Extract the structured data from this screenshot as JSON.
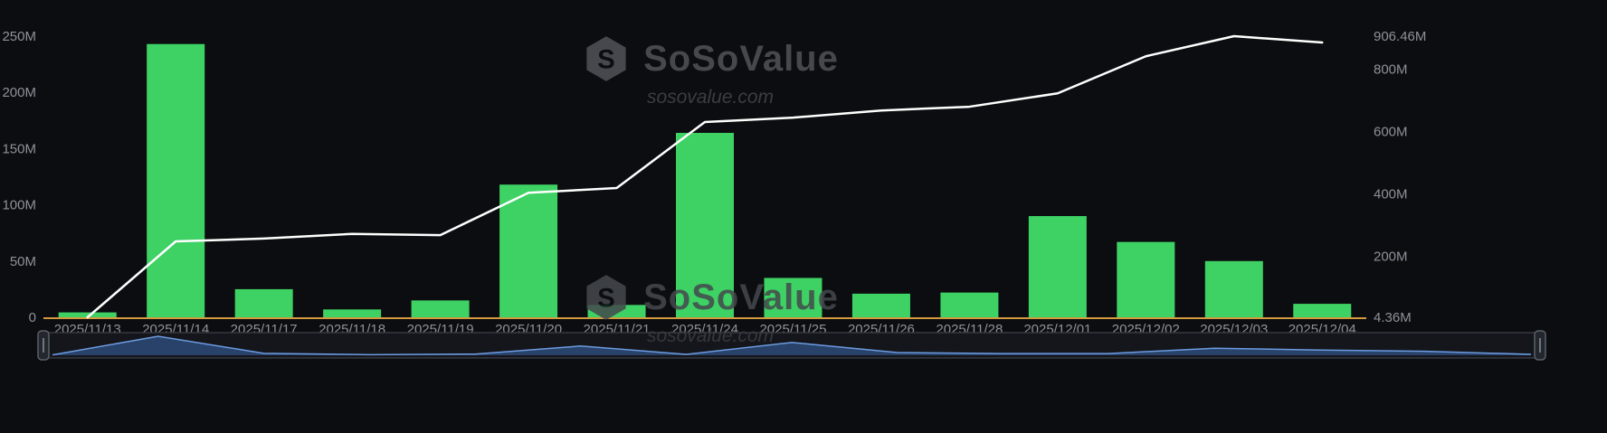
{
  "watermark": {
    "brand": "SoSoValue",
    "domain": "sosovalue.com"
  },
  "chart_data": {
    "type": "bar",
    "title": "",
    "categories": [
      "2025/11/13",
      "2025/11/14",
      "2025/11/17",
      "2025/11/18",
      "2025/11/19",
      "2025/11/20",
      "2025/11/21",
      "2025/11/24",
      "2025/11/25",
      "2025/11/26",
      "2025/11/28",
      "2025/12/01",
      "2025/12/02",
      "2025/12/03",
      "2025/12/04"
    ],
    "series": [
      {
        "name": "daily-net-flow-bars",
        "type": "bar",
        "axis": "left",
        "color": "#3ed164",
        "values": [
          4.36,
          243,
          25,
          7,
          15,
          118,
          11,
          164,
          35,
          21,
          22,
          90,
          67,
          50,
          12
        ]
      },
      {
        "name": "cumulative-net-flow-line",
        "type": "line",
        "axis": "right",
        "color": "#ffffff",
        "values": [
          4.36,
          248,
          257,
          272,
          268,
          404,
          419,
          631,
          645,
          668,
          680,
          723,
          842,
          906.46,
          886
        ]
      }
    ],
    "left_axis": {
      "min": 0,
      "max": 250,
      "ticks": [
        {
          "value": 0,
          "label": "0"
        },
        {
          "value": 50,
          "label": "50M"
        },
        {
          "value": 100,
          "label": "100M"
        },
        {
          "value": 150,
          "label": "150M"
        },
        {
          "value": 200,
          "label": "200M"
        },
        {
          "value": 250,
          "label": "250M"
        }
      ]
    },
    "right_axis": {
      "min": 4.36,
      "max": 906.46,
      "ticks": [
        {
          "value": 4.36,
          "label": "4.36M"
        },
        {
          "value": 200,
          "label": "200M"
        },
        {
          "value": 400,
          "label": "400M"
        },
        {
          "value": 600,
          "label": "600M"
        },
        {
          "value": 800,
          "label": "800M"
        },
        {
          "value": 906.46,
          "label": "906.46M"
        }
      ]
    },
    "axis_line_color": "#d49a3d",
    "label_color": "#8d9199",
    "background": "#0c0d10",
    "grid": false,
    "legend": "none"
  },
  "slider": {
    "track": "#14161b",
    "border": "#34383f",
    "fill": "#2b4a77",
    "stroke": "#6c9be0",
    "handle_fill": "#23262d",
    "handle_border": "#596069",
    "grip": "#8a9097"
  }
}
